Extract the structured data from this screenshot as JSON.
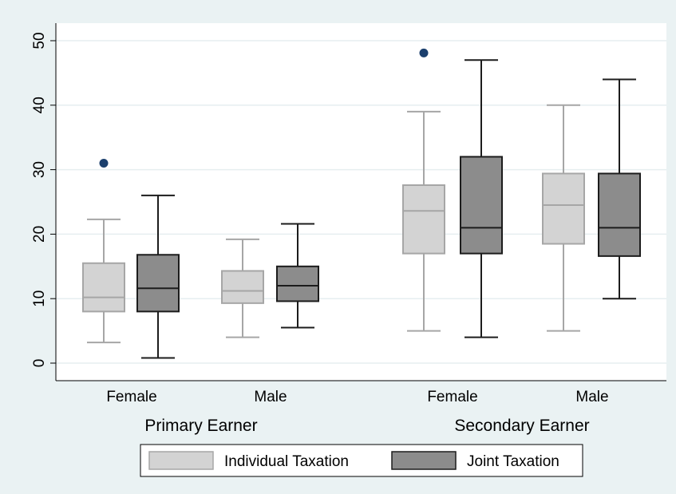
{
  "chart_data": {
    "type": "box",
    "title": "",
    "xlabel": "",
    "ylabel": "",
    "ylim": [
      0,
      50
    ],
    "yticks": [
      0,
      10,
      20,
      30,
      40,
      50
    ],
    "grid": "horizontal",
    "legend_position": "bottom",
    "groups": [
      {
        "label": "Primary Earner",
        "categories": [
          {
            "label": "Female",
            "boxes": [
              {
                "series": "Individual Taxation",
                "whisker_low": 3.2,
                "q1": 8.0,
                "median": 10.2,
                "q3": 15.5,
                "whisker_high": 22.3,
                "outliers": [
                  31.0
                ]
              },
              {
                "series": "Joint Taxation",
                "whisker_low": 0.8,
                "q1": 8.0,
                "median": 11.6,
                "q3": 16.8,
                "whisker_high": 26.0,
                "outliers": []
              }
            ]
          },
          {
            "label": "Male",
            "boxes": [
              {
                "series": "Individual Taxation",
                "whisker_low": 4.0,
                "q1": 9.3,
                "median": 11.2,
                "q3": 14.3,
                "whisker_high": 19.2,
                "outliers": []
              },
              {
                "series": "Joint Taxation",
                "whisker_low": 5.5,
                "q1": 9.6,
                "median": 12.0,
                "q3": 15.0,
                "whisker_high": 21.6,
                "outliers": []
              }
            ]
          }
        ]
      },
      {
        "label": "Secondary Earner",
        "categories": [
          {
            "label": "Female",
            "boxes": [
              {
                "series": "Individual Taxation",
                "whisker_low": 5.0,
                "q1": 17.0,
                "median": 23.6,
                "q3": 27.6,
                "whisker_high": 39.0,
                "outliers": [
                  48.1
                ]
              },
              {
                "series": "Joint Taxation",
                "whisker_low": 4.0,
                "q1": 17.0,
                "median": 21.0,
                "q3": 32.0,
                "whisker_high": 47.0,
                "outliers": []
              }
            ]
          },
          {
            "label": "Male",
            "boxes": [
              {
                "series": "Individual Taxation",
                "whisker_low": 5.0,
                "q1": 18.5,
                "median": 24.5,
                "q3": 29.4,
                "whisker_high": 40.0,
                "outliers": []
              },
              {
                "series": "Joint Taxation",
                "whisker_low": 10.0,
                "q1": 16.6,
                "median": 21.0,
                "q3": 29.4,
                "whisker_high": 44.0,
                "outliers": []
              }
            ]
          }
        ]
      }
    ],
    "series": [
      {
        "name": "Individual Taxation",
        "fill": "#d3d3d3",
        "stroke": "#a6a6a6"
      },
      {
        "name": "Joint Taxation",
        "fill": "#8c8c8c",
        "stroke": "#1c1c1c"
      }
    ],
    "outlier_color": "#1b3f6d",
    "background_color": "#eaf2f3",
    "plot_background_color": "#ffffff",
    "gridline_color": "#e6eef0"
  }
}
